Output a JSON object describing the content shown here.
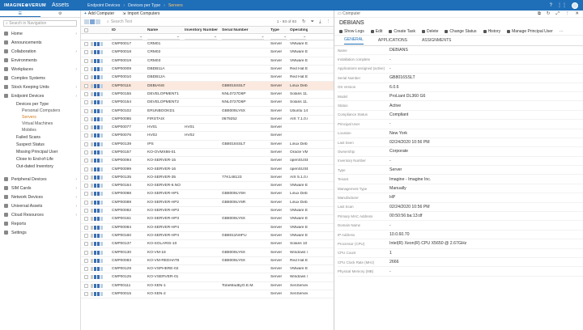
{
  "topbar": {
    "logo": "IMAGINE⊕VERUM",
    "app_title": "Assets",
    "breadcrumbs": [
      "Endpoint Devices",
      "Devices per Type",
      "Servers"
    ]
  },
  "sidebar": {
    "search_placeholder": "Search in Navigation",
    "items": [
      {
        "label": "Home",
        "level": 0,
        "chevron": true
      },
      {
        "label": "Announcements",
        "level": 0
      },
      {
        "label": "Collaboration",
        "level": 0,
        "chevron": true
      },
      {
        "label": "Environments",
        "level": 0
      },
      {
        "label": "Workplaces",
        "level": 0,
        "chevron": true
      },
      {
        "label": "Complex Systems",
        "level": 0
      },
      {
        "label": "Stock Keeping Units",
        "level": 0,
        "chevron": true
      },
      {
        "label": "Endpoint Devices",
        "level": 0,
        "chevron": true
      },
      {
        "label": "Devices per Type",
        "level": 1
      },
      {
        "label": "Personal Computers",
        "level": 2
      },
      {
        "label": "Servers",
        "level": 2,
        "selected": true
      },
      {
        "label": "Virtual Machines",
        "level": 2
      },
      {
        "label": "Mobiles",
        "level": 2
      },
      {
        "label": "Failed Scans",
        "level": 1
      },
      {
        "label": "Suspect Status",
        "level": 1
      },
      {
        "label": "Missing Principal User",
        "level": 1
      },
      {
        "label": "Close to End-of-Life",
        "level": 1
      },
      {
        "label": "Out-dated Inventory",
        "level": 1
      },
      {
        "label": "",
        "level": 0,
        "spacer": true
      },
      {
        "label": "Peripheral Devices",
        "level": 0,
        "chevron": true
      },
      {
        "label": "SIM Cards",
        "level": 0,
        "chevron": true
      },
      {
        "label": "Network Devices",
        "level": 0,
        "chevron": true
      },
      {
        "label": "Universal Assets",
        "level": 0,
        "chevron": true
      },
      {
        "label": "Cloud Resources",
        "level": 0,
        "chevron": true
      },
      {
        "label": "Reports",
        "level": 0
      },
      {
        "label": "Settings",
        "level": 0
      }
    ]
  },
  "toolbar": {
    "add_label": "Add Computer",
    "import_label": "Import Computers"
  },
  "filterbar": {
    "search_placeholder": "Search Text",
    "count": "1 - 93 of 93"
  },
  "grid": {
    "columns": [
      "ID",
      "Name",
      "Inventory Number",
      "Serial Number",
      "Type",
      "Operating"
    ],
    "rows": [
      [
        "CMP00017",
        "CRM01",
        "",
        "",
        "Server",
        "VMware ESX"
      ],
      [
        "CMP00018",
        "CRM02",
        "",
        "",
        "Server",
        "VMware ESX"
      ],
      [
        "CMP00019",
        "CRM03",
        "",
        "",
        "Server",
        "VMware ESX"
      ],
      [
        "CMP00009",
        "DBDB11A",
        "",
        "",
        "Server",
        "Red Hat Ente"
      ],
      [
        "CMP00010",
        "DBDB12A",
        "",
        "",
        "Server",
        "Red Hat Ente"
      ],
      [
        "CMP00116",
        "DEBIANS",
        "",
        "GB8016SSLT",
        "Server",
        "Linux Debian"
      ],
      [
        "CMP00155",
        "DEVELOPMENT1",
        "",
        "NNL0727D6P",
        "Server",
        "Solaris 11.3"
      ],
      [
        "CMP00154",
        "DEVELOPMENT2",
        "",
        "NNL0727D6P",
        "Server",
        "Solaris 11.3"
      ],
      [
        "CMP00102",
        "ERUNBOOKD1",
        "",
        "GB8009LY6X",
        "Server",
        "Ubuntu 14.0"
      ],
      [
        "CMP00085",
        "FIRSTAIX",
        "",
        "0679252",
        "Server",
        "AIX 7.1.0.0"
      ],
      [
        "CMP00077",
        "HV01",
        "HV01",
        "",
        "Server",
        ""
      ],
      [
        "CMP00076",
        "HV02",
        "HV02",
        "",
        "Server",
        ""
      ],
      [
        "CMP00139",
        "IPS",
        "",
        "GB8016SSLT",
        "Server",
        "Linux Debian"
      ],
      [
        "CMP00157",
        "KO-OVMX86-01",
        "",
        "",
        "Server",
        "Oracle VM S"
      ],
      [
        "CMP00094",
        "KO-SERVER-15",
        "",
        "",
        "Server",
        "openSUSE 1"
      ],
      [
        "CMP00099",
        "KO-SERVER-16",
        "",
        "",
        "Server",
        "openSUSE 1"
      ],
      [
        "CMP00135",
        "KO-SERVER-35",
        "",
        "77K148123",
        "Server",
        "AIX 5.1.0.0"
      ],
      [
        "CMP00164",
        "KO-SERVER-6.NO",
        "",
        "",
        "Server",
        "VMware ESX"
      ],
      [
        "CMP00088",
        "KO-SERVER-HP1",
        "",
        "GB8009LY8H",
        "Server",
        "Linux Debian"
      ],
      [
        "CMP00089",
        "KO-SERVER-HP2",
        "",
        "GB8009LY6R",
        "Server",
        "Linux Debian"
      ],
      [
        "CMP00082",
        "KO-SERVER-HP3",
        "",
        "",
        "Server",
        "VMware ESX"
      ],
      [
        "CMP00161",
        "KO-SERVER-HP3",
        "",
        "GB8009LY6X",
        "Server",
        "VMware ESX"
      ],
      [
        "CMP00084",
        "KO-SERVER-HP4",
        "",
        "",
        "Server",
        "VMware ESX"
      ],
      [
        "CMP00160",
        "KO-SERVER-HP4",
        "",
        "GB8011NHFU",
        "Server",
        "VMware ESX"
      ],
      [
        "CMP00137",
        "KO-SOLARIS-10",
        "",
        "",
        "Server",
        "Solaris 10 1"
      ],
      [
        "CMP00130",
        "KO-VM-18",
        "",
        "GB8009LY6X",
        "Server",
        "Windows Se"
      ],
      [
        "CMP00083",
        "KO-VM-REDHAT6",
        "",
        "GB8009LY6X",
        "Server",
        "Red Hat Ente"
      ],
      [
        "CMP00129",
        "KO-VSPHERE-02",
        "",
        "",
        "Server",
        "VMware ESX"
      ],
      [
        "CMP00125",
        "KO-VSERVER-01",
        "",
        "",
        "Server",
        "Windows Se"
      ],
      [
        "CMP00111",
        "KO-XEN-1",
        "",
        "TobeMadbyO.E.M.",
        "Server",
        "XenServer 6"
      ],
      [
        "CMP00015",
        "KO-XEN-2",
        "",
        "",
        "Server",
        "XenServer 6"
      ]
    ],
    "highlight_row": 5
  },
  "panel": {
    "header": "Computer",
    "title": "DEBIANS",
    "actions": [
      "Show Logs",
      "Edit",
      "Create Task",
      "Delete",
      "Change Status",
      "History",
      "Manage Principal User"
    ],
    "tabs": [
      "GENERAL",
      "APPLICATIONS",
      "ASSIGNMENTS"
    ],
    "properties": [
      {
        "label": "Name",
        "value": "DEBIANS"
      },
      {
        "label": "Installation complete",
        "value": "-"
      },
      {
        "label": "Applications assigned (active)",
        "value": "-"
      },
      {
        "label": "Serial Number",
        "value": "GB8016SSLT"
      },
      {
        "label": "OS Version",
        "value": "6.0.6"
      },
      {
        "label": "Model",
        "value": "ProLiant DL360 G6"
      },
      {
        "label": "Status",
        "value": "Active"
      },
      {
        "label": "Compliance Status",
        "value": "Compliant"
      },
      {
        "label": "Principal User",
        "value": "-"
      },
      {
        "label": "Location",
        "value": "New York"
      },
      {
        "label": "Last Seen",
        "value": "02/24/2020 10:56 PM"
      },
      {
        "label": "Ownership",
        "value": "Corporate"
      },
      {
        "label": "Inventory Number",
        "value": "-"
      },
      {
        "label": "Type",
        "value": "Server"
      },
      {
        "label": "Tenant",
        "value": "Imagine - Imagine Inc."
      },
      {
        "label": "Management Type",
        "value": "Manually"
      },
      {
        "label": "Manufacturer",
        "value": "HP"
      },
      {
        "label": "Last Scan",
        "value": "02/24/2020 10:56 PM"
      },
      {
        "label": "Primary MAC Address",
        "value": "00:50:56:ba:13:df"
      },
      {
        "label": "Domain Name",
        "value": "-"
      },
      {
        "label": "IP Address",
        "value": "10.0.60.70"
      },
      {
        "label": "Processor (CPU)",
        "value": "Intel(R) Xeon(R) CPU X5650 @ 2.67GHz"
      },
      {
        "label": "CPU Count",
        "value": "1"
      },
      {
        "label": "CPU Clock Rate (MHz)",
        "value": "2666"
      },
      {
        "label": "Physical Memory (MB)",
        "value": "-"
      }
    ]
  }
}
